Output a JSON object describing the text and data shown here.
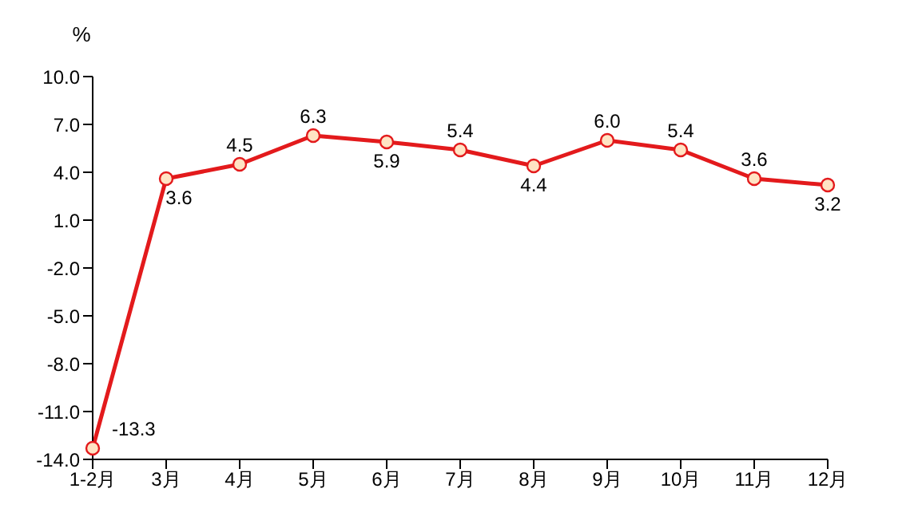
{
  "chart_data": {
    "type": "line",
    "ylabel": "%",
    "categories": [
      "1-2月",
      "3月",
      "4月",
      "5月",
      "6月",
      "7月",
      "8月",
      "9月",
      "10月",
      "11月",
      "12月"
    ],
    "series": [
      {
        "color": "#e31a1c",
        "values": [
          -13.3,
          3.6,
          4.5,
          6.3,
          5.9,
          5.4,
          4.4,
          6.0,
          5.4,
          3.6,
          3.2
        ]
      }
    ],
    "ylim": [
      -14,
      10
    ],
    "yticks": [
      {
        "value": 10,
        "label": "10.0"
      },
      {
        "value": 7,
        "label": "7.0"
      },
      {
        "value": 4,
        "label": "4.0"
      },
      {
        "value": 1,
        "label": "1.0"
      },
      {
        "value": -2,
        "label": "-2.0"
      },
      {
        "value": -5,
        "label": "-5.0"
      },
      {
        "value": -8,
        "label": "-8.0"
      },
      {
        "value": -11,
        "label": "-11.0"
      },
      {
        "value": -14,
        "label": "-14.0"
      }
    ],
    "value_labels": [
      "-13.3",
      "3.6",
      "4.5",
      "6.3",
      "5.9",
      "5.4",
      "4.4",
      "6.0",
      "5.4",
      "3.6",
      "3.2"
    ],
    "marker": "circle",
    "grid": false,
    "legend": false
  }
}
